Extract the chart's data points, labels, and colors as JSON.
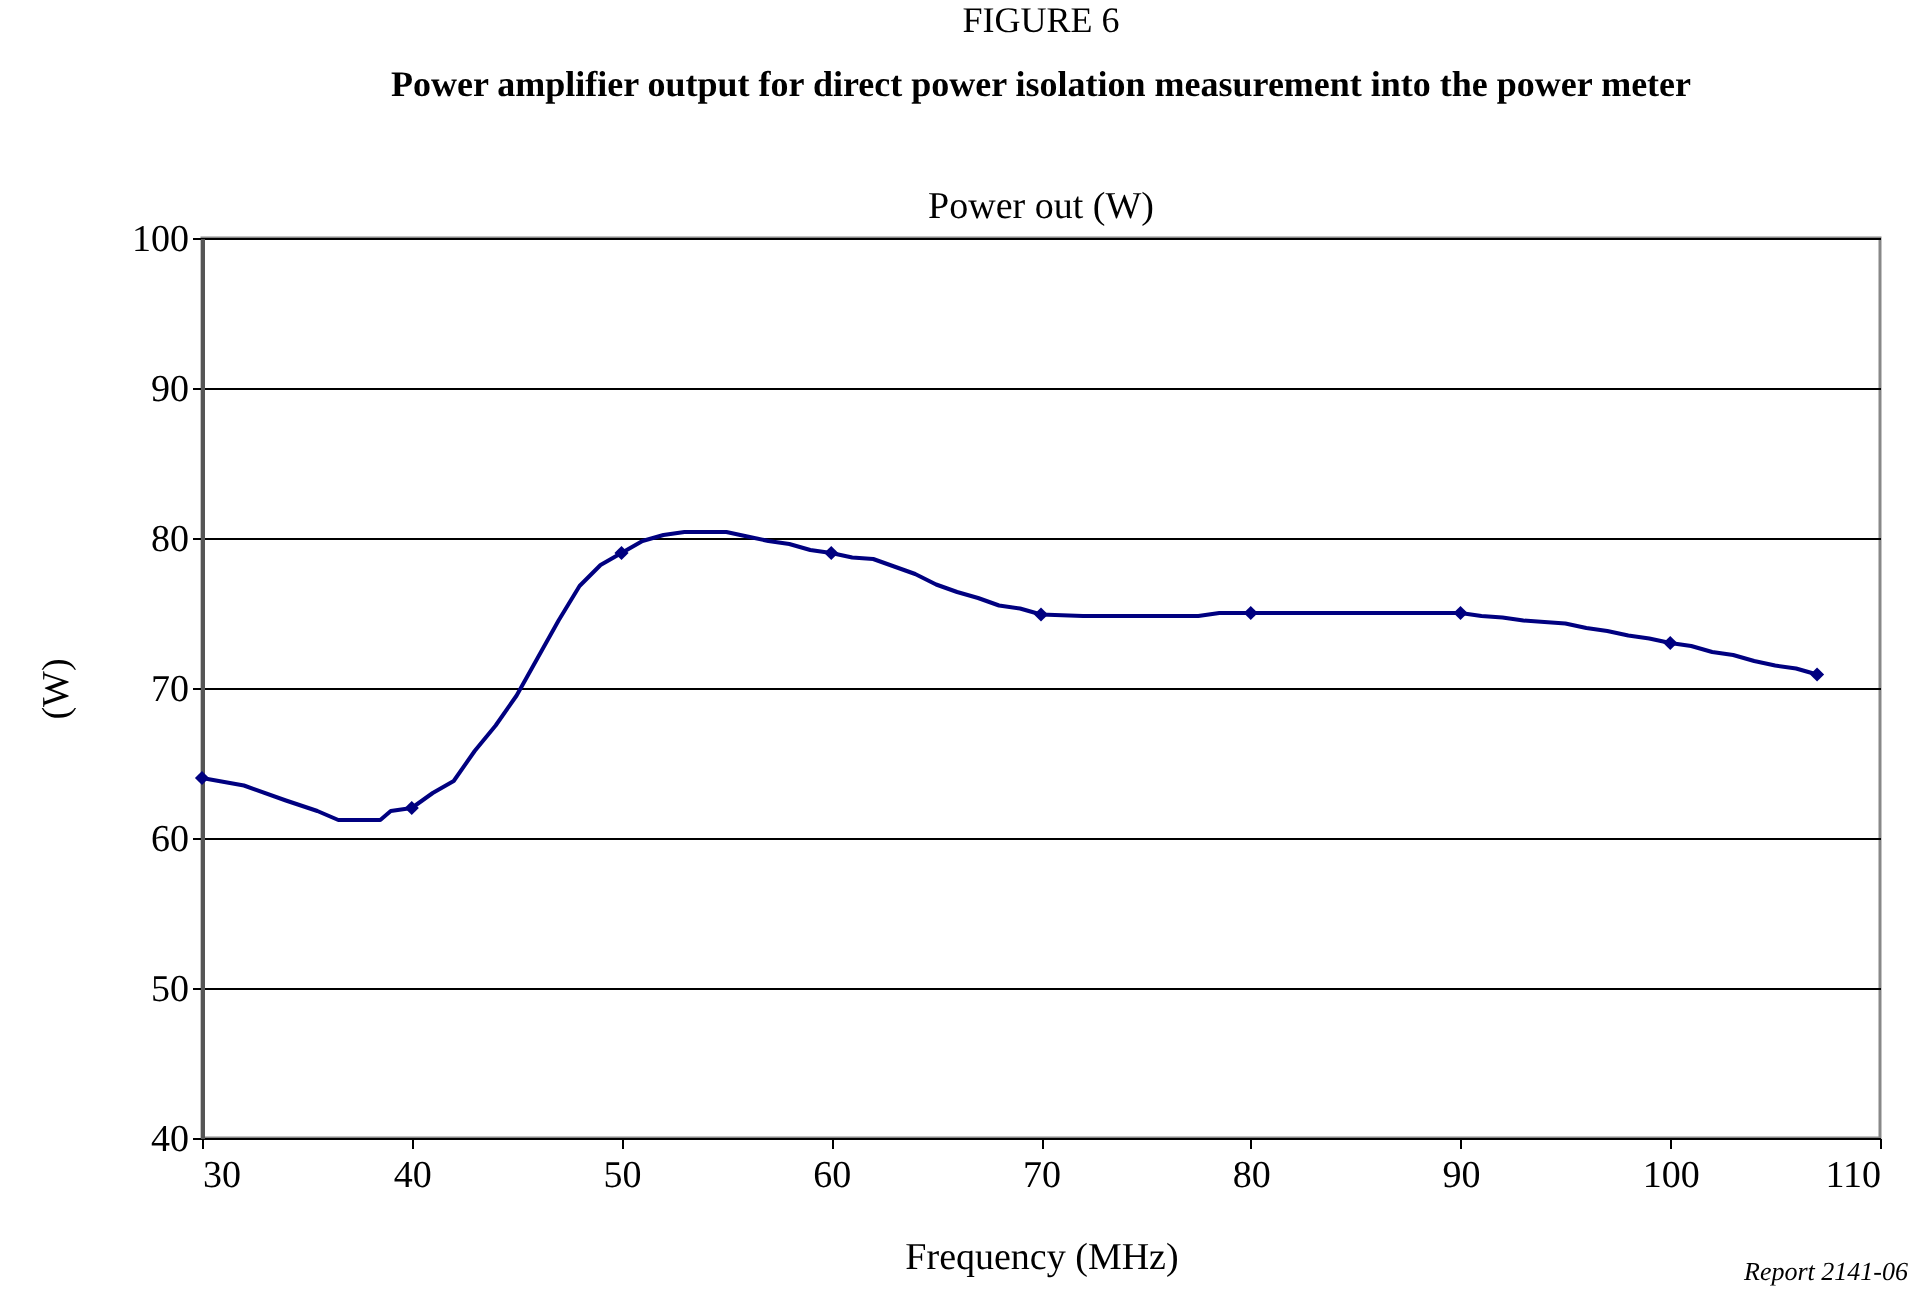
{
  "chart_data": {
    "type": "line",
    "title": "FIGURE 6",
    "subtitle": "Power amplifier output for direct power isolation measurement into the power meter",
    "xlabel": "Frequency (MHz)",
    "ylabel": "(W)",
    "annotations": [
      "Power out (W)",
      "Report 2141-06"
    ],
    "series": [
      {
        "color": "#000080",
        "marker": "none",
        "x": [
          30,
          32,
          34,
          35.5,
          36.5,
          38.5,
          39,
          40,
          41,
          42,
          43,
          44,
          45,
          46,
          47,
          48,
          49,
          50,
          51,
          52,
          53,
          55,
          56,
          57,
          58,
          59,
          60,
          61,
          62,
          63,
          64,
          65,
          66,
          67,
          68,
          69,
          70,
          72,
          75,
          77.5,
          78.5,
          80,
          85,
          90,
          91,
          92,
          93,
          94,
          95,
          96,
          97,
          98,
          99,
          100,
          101,
          102,
          103,
          104,
          105,
          106,
          107
        ],
        "values": [
          64.0,
          63.5,
          62.5,
          61.8,
          61.2,
          61.2,
          61.8,
          62.0,
          63.0,
          63.8,
          65.8,
          67.5,
          69.5,
          72.0,
          74.5,
          76.8,
          78.2,
          79.0,
          79.8,
          80.2,
          80.4,
          80.4,
          80.1,
          79.8,
          79.6,
          79.2,
          79.0,
          78.7,
          78.6,
          78.1,
          77.6,
          76.9,
          76.4,
          76.0,
          75.5,
          75.3,
          74.9,
          74.8,
          74.8,
          74.8,
          75.0,
          75.0,
          75.0,
          75.0,
          74.8,
          74.7,
          74.5,
          74.4,
          74.3,
          74.0,
          73.8,
          73.5,
          73.3,
          73.0,
          72.8,
          72.4,
          72.2,
          71.8,
          71.5,
          71.3,
          70.9
        ]
      },
      {
        "type": "scatter",
        "color": "#000080",
        "marker": "diamond",
        "x": [
          30,
          40,
          50,
          60,
          70,
          80,
          90,
          100,
          107
        ],
        "values": [
          64.0,
          62.0,
          79.0,
          79.0,
          74.9,
          75.0,
          75.0,
          73.0,
          70.9
        ]
      }
    ],
    "xlim": [
      30,
      110
    ],
    "xticks": [
      30,
      40,
      50,
      60,
      70,
      80,
      90,
      100,
      110
    ],
    "ylim": [
      40,
      100
    ],
    "yticks": [
      40,
      50,
      60,
      70,
      80,
      90,
      100
    ],
    "grid": "y"
  }
}
